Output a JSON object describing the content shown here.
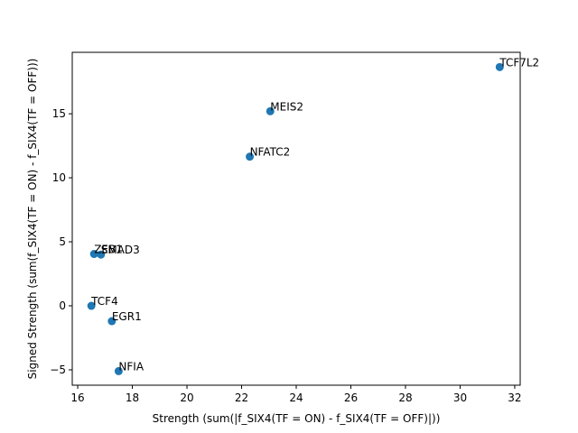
{
  "chart_data": {
    "type": "scatter",
    "title": "",
    "xlabel": "Strength (sum(|f_SIX4(TF = ON) - f_SIX4(TF = OFF)|))",
    "ylabel": "Signed Strength (sum(f_SIX4(TF = ON) - f_SIX4(TF = OFF)))",
    "xlim": [
      15.8,
      32.2
    ],
    "ylim": [
      -6.2,
      19.8
    ],
    "xticks": [
      16,
      18,
      20,
      22,
      24,
      26,
      28,
      30,
      32
    ],
    "yticks": [
      -5,
      0,
      5,
      10,
      15
    ],
    "grid": false,
    "marker_color": "#1f77b4",
    "points": [
      {
        "label": "TCF7L2",
        "x": 31.45,
        "y": 18.65
      },
      {
        "label": "MEIS2",
        "x": 23.05,
        "y": 15.2
      },
      {
        "label": "NFATC2",
        "x": 22.3,
        "y": 11.65
      },
      {
        "label": "ZEB1",
        "x": 16.6,
        "y": 4.05
      },
      {
        "label": "SMAD3",
        "x": 16.85,
        "y": 4.0
      },
      {
        "label": "TCF4",
        "x": 16.5,
        "y": 0.0
      },
      {
        "label": "EGR1",
        "x": 17.25,
        "y": -1.2
      },
      {
        "label": "NFIA",
        "x": 17.5,
        "y": -5.1
      }
    ]
  }
}
